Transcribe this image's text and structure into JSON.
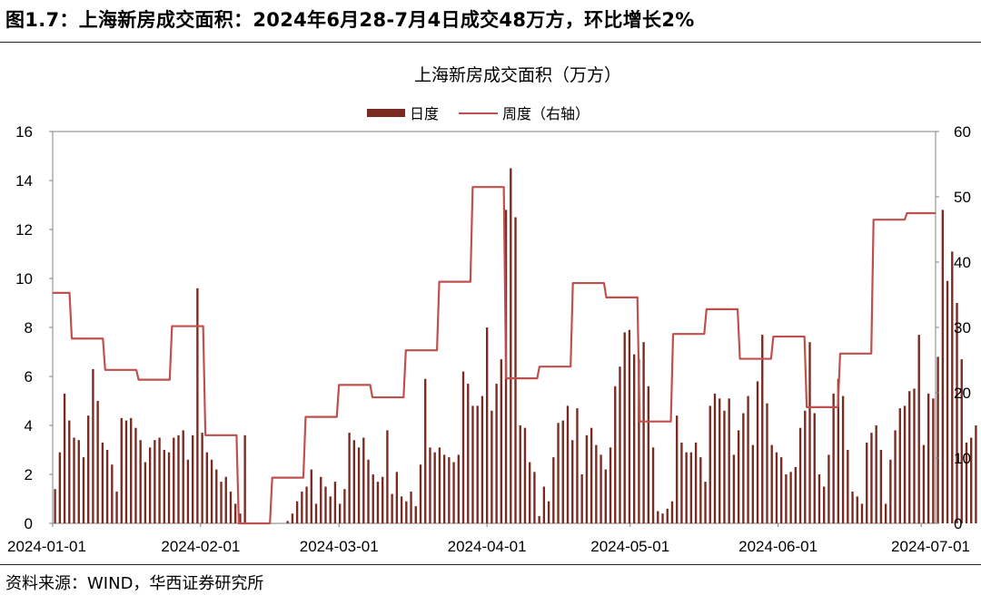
{
  "figure_title": "图1.7：上海新房成交面积：2024年6月28-7月4日成交48万方，环比增长2%",
  "source": "资料来源：WIND，华西证券研究所",
  "colors": {
    "daily": "#7b2a22",
    "weekly": "#c0504d",
    "axis": "#808080"
  },
  "chart_data": {
    "type": "bar+line",
    "title": "上海新房成交面积（万方）",
    "legend": [
      "日度",
      "周度（右轴）"
    ],
    "legend_position": "top-center",
    "grid": false,
    "x_start": "2024-01-01",
    "x_end": "2024-07-04",
    "x_ticks": [
      "2024-01-01",
      "2024-02-01",
      "2024-03-01",
      "2024-04-01",
      "2024-05-01",
      "2024-06-01",
      "2024-07-01"
    ],
    "ylim_left": [
      0,
      16
    ],
    "yticks_left": [
      "0",
      "2",
      "4",
      "6",
      "8",
      "10",
      "12",
      "14",
      "16"
    ],
    "ylim_right": [
      0,
      60
    ],
    "yticks_right": [
      "0",
      "10",
      "20",
      "30",
      "40",
      "50",
      "60"
    ],
    "series": [
      {
        "name": "日度",
        "type": "bar",
        "axis": "left",
        "values": [
          1.4,
          2.9,
          5.3,
          4.2,
          3.5,
          3.4,
          2.7,
          4.4,
          6.3,
          5.0,
          3.3,
          3.0,
          2.4,
          1.3,
          4.3,
          4.2,
          4.3,
          3.9,
          3.4,
          2.5,
          3.1,
          3.4,
          3.5,
          3.0,
          2.9,
          3.5,
          3.6,
          3.8,
          2.6,
          3.6,
          9.6,
          3.7,
          2.9,
          2.6,
          2.2,
          1.7,
          1.9,
          1.3,
          0.8,
          0.4,
          3.6,
          0,
          0,
          0,
          0,
          0,
          0,
          0,
          0,
          0.1,
          0.4,
          0.9,
          1.3,
          1.5,
          2.2,
          0.8,
          1.9,
          1.5,
          1.1,
          1.7,
          0.8,
          1.4,
          3.7,
          3.4,
          3.1,
          3.5,
          2.6,
          2.0,
          1.7,
          1.9,
          3.8,
          1.2,
          2.1,
          1.1,
          0.9,
          1.3,
          0.7,
          2.4,
          5.9,
          3.1,
          2.9,
          3.1,
          2.8,
          2.7,
          2.5,
          2.8,
          6.2,
          5.7,
          4.8,
          4.8,
          5.2,
          8.0,
          4.6,
          5.7,
          6.7,
          12.8,
          14.5,
          12.5,
          4.0,
          3.9,
          2.5,
          2.1,
          0.3,
          1.5,
          0.9,
          2.7,
          4.1,
          4.2,
          4.8,
          3.4,
          4.7,
          2.0,
          3.6,
          3.9,
          3.2,
          2.8,
          2.2,
          3.1,
          5.6,
          6.4,
          7.8,
          7.9,
          6.9,
          6.7,
          7.4,
          5.6,
          3.1,
          0.5,
          0.4,
          0.6,
          0.9,
          4.4,
          3.3,
          2.9,
          2.9,
          3.3,
          2.7,
          1.7,
          4.8,
          5.3,
          5.1,
          4.6,
          5.1,
          2.8,
          3.8,
          4.5,
          5.2,
          3.2,
          5.8,
          7.7,
          4.9,
          3.2,
          2.9,
          2.7,
          2.0,
          2.1,
          2.3,
          3.9,
          4.6,
          7.4,
          4.5,
          2.0,
          1.5,
          2.8,
          5.3,
          5.9,
          5.2,
          3.0,
          1.3,
          1.1,
          0.8,
          3.3,
          3.7,
          4.0,
          3.0,
          0.8,
          2.6,
          3.8,
          4.7,
          4.8,
          5.4,
          5.5,
          7.7,
          3.2,
          5.3,
          5.1,
          6.8,
          12.8,
          9.9,
          11.1,
          9.0,
          6.7,
          3.3,
          3.5,
          4.0
        ]
      },
      {
        "name": "周度（右轴）",
        "type": "step-line",
        "axis": "right",
        "points": [
          [
            "2024-01-01",
            35.3
          ],
          [
            "2024-01-05",
            28.3
          ],
          [
            "2024-01-12",
            23.5
          ],
          [
            "2024-01-19",
            22.0
          ],
          [
            "2024-01-26",
            30.2
          ],
          [
            "2024-02-02",
            13.5
          ],
          [
            "2024-02-09",
            0
          ],
          [
            "2024-02-16",
            7.0
          ],
          [
            "2024-02-23",
            16.3
          ],
          [
            "2024-03-01",
            21.2
          ],
          [
            "2024-03-08",
            19.3
          ],
          [
            "2024-03-15",
            26.5
          ],
          [
            "2024-03-22",
            37.0
          ],
          [
            "2024-03-29",
            51.5
          ],
          [
            "2024-04-05",
            22.2
          ],
          [
            "2024-04-12",
            24.0
          ],
          [
            "2024-04-19",
            36.8
          ],
          [
            "2024-04-26",
            34.6
          ],
          [
            "2024-05-03",
            15.6
          ],
          [
            "2024-05-10",
            29.0
          ],
          [
            "2024-05-17",
            32.8
          ],
          [
            "2024-05-24",
            25.2
          ],
          [
            "2024-05-31",
            28.6
          ],
          [
            "2024-06-07",
            17.8
          ],
          [
            "2024-06-14",
            26.0
          ],
          [
            "2024-06-21",
            46.5
          ],
          [
            "2024-06-28",
            47.5
          ],
          [
            "2024-07-04",
            47.5
          ]
        ]
      }
    ]
  }
}
